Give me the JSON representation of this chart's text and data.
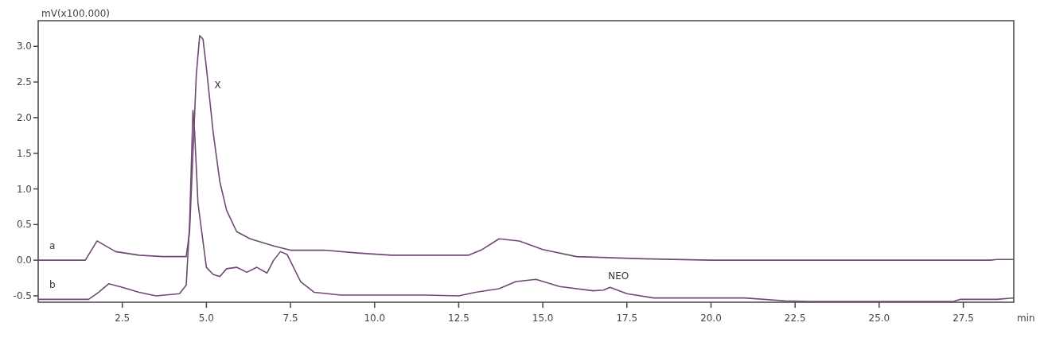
{
  "chart_data": {
    "type": "line",
    "ylabel": "mV(x100.000)",
    "xlabel": "min",
    "xlim": [
      0,
      29
    ],
    "ylim": [
      -0.59,
      3.36
    ],
    "grid": false,
    "xticks": [
      2.5,
      {
        "value": 5,
        "label": "5.0"
      },
      7.5,
      {
        "value": 10,
        "label": "10.0"
      },
      12.5,
      {
        "value": 15,
        "label": "15.0"
      },
      17.5,
      {
        "value": 20,
        "label": "20.0"
      },
      22.5,
      {
        "value": 25,
        "label": "25.0"
      },
      27.5
    ],
    "yticks": [
      -0.5,
      {
        "value": 0,
        "label": "0.0"
      },
      0.5,
      {
        "value": 1,
        "label": "1.0"
      },
      1.5,
      {
        "value": 2,
        "label": "2.0"
      },
      2.5,
      {
        "value": 3,
        "label": "3.0"
      }
    ],
    "annotations": [
      {
        "text": "X",
        "x": 5.1,
        "y": 2.3
      },
      {
        "text": "NEO",
        "x": 16.8,
        "y": -0.38
      }
    ],
    "series": [
      {
        "name": "a",
        "color": "#6e4a72",
        "x": [
          0,
          1.4,
          1.75,
          2.3,
          3.0,
          3.7,
          4.4,
          4.5,
          4.6,
          4.7,
          4.8,
          4.9,
          5.0,
          5.2,
          5.4,
          5.6,
          5.9,
          6.3,
          7.0,
          7.5,
          8.5,
          9.5,
          10.5,
          12.8,
          13.2,
          13.7,
          14.3,
          15.0,
          16.0,
          18.0,
          20.0,
          28.3,
          28.5,
          29
        ],
        "values": [
          0,
          0,
          0.27,
          0.12,
          0.07,
          0.05,
          0.05,
          0.4,
          1.5,
          2.6,
          3.15,
          3.1,
          2.7,
          1.8,
          1.1,
          0.7,
          0.4,
          0.3,
          0.2,
          0.14,
          0.14,
          0.1,
          0.07,
          0.07,
          0.15,
          0.3,
          0.27,
          0.15,
          0.05,
          0.02,
          0,
          0,
          0.01,
          0.01
        ]
      },
      {
        "name": "b",
        "color": "#6e4a72",
        "x": [
          0,
          1.5,
          1.8,
          2.1,
          2.5,
          3.0,
          3.5,
          4.2,
          4.4,
          4.5,
          4.6,
          4.65,
          4.75,
          5.0,
          5.2,
          5.4,
          5.6,
          5.9,
          6.2,
          6.5,
          6.8,
          7.0,
          7.2,
          7.4,
          7.8,
          8.2,
          9.0,
          11.5,
          12.5,
          13.0,
          13.7,
          14.2,
          14.8,
          15.5,
          16.5,
          16.8,
          17.0,
          17.5,
          18.3,
          20,
          21,
          22.2,
          23,
          26,
          27.2,
          27.4,
          28.5,
          29
        ],
        "values": [
          -0.55,
          -0.55,
          -0.45,
          -0.33,
          -0.38,
          -0.45,
          -0.5,
          -0.47,
          -0.35,
          0.5,
          2.1,
          1.8,
          0.8,
          -0.1,
          -0.2,
          -0.23,
          -0.12,
          -0.1,
          -0.17,
          -0.1,
          -0.18,
          0,
          0.12,
          0.08,
          -0.3,
          -0.45,
          -0.49,
          -0.49,
          -0.5,
          -0.45,
          -0.4,
          -0.3,
          -0.27,
          -0.37,
          -0.43,
          -0.42,
          -0.38,
          -0.47,
          -0.53,
          -0.53,
          -0.53,
          -0.57,
          -0.58,
          -0.58,
          -0.58,
          -0.55,
          -0.55,
          -0.53
        ]
      }
    ]
  }
}
